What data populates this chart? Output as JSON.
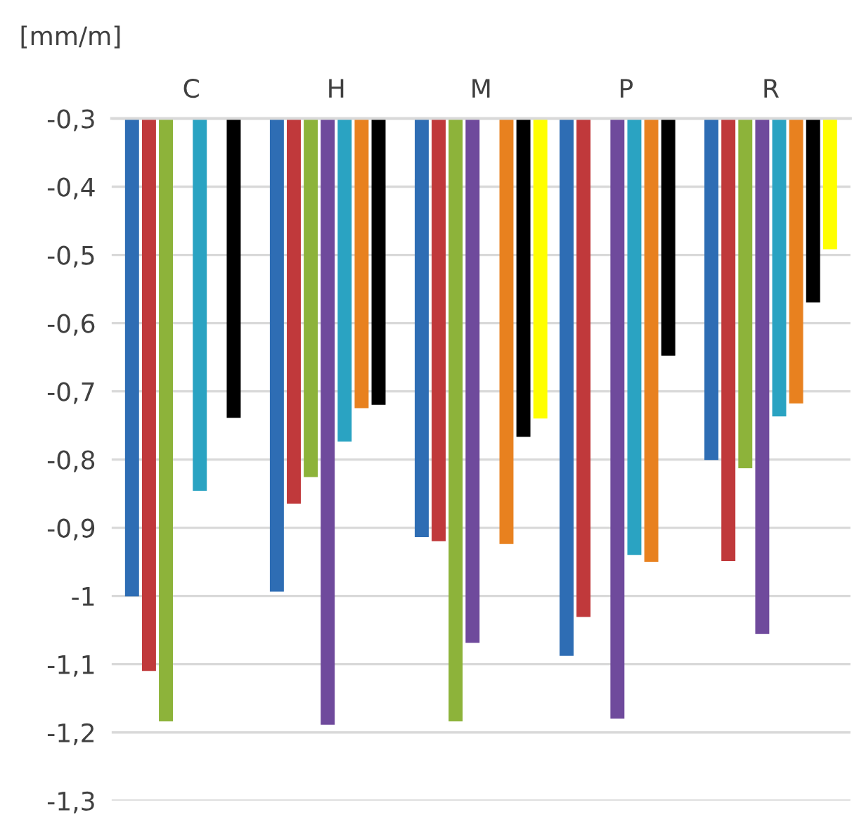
{
  "chart_data": {
    "type": "bar",
    "ylabel": "[mm/m]",
    "categories": [
      "C",
      "H",
      "M",
      "P",
      "R"
    ],
    "series": [
      {
        "color": "#2e6db4",
        "values": [
          -1.0,
          -0.993,
          -0.913,
          -1.087,
          -0.8
        ]
      },
      {
        "color": "#c0393b",
        "values": [
          -1.109,
          -0.864,
          -0.919,
          -1.03,
          -0.948
        ]
      },
      {
        "color": "#8db33a",
        "values": [
          -1.183,
          -0.825,
          -1.183,
          null,
          -0.812
        ]
      },
      {
        "color": "#6f4a9c",
        "values": [
          null,
          -1.188,
          -1.068,
          -1.179,
          -1.055
        ]
      },
      {
        "color": "#2aa3c2",
        "values": [
          -0.845,
          -0.773,
          null,
          -0.939,
          -0.736
        ]
      },
      {
        "color": "#e8811f",
        "values": [
          null,
          -0.724,
          -0.923,
          -0.949,
          -0.717
        ]
      },
      {
        "color": "#000000",
        "values": [
          -0.738,
          -0.719,
          -0.766,
          -0.647,
          -0.569
        ]
      },
      {
        "color": "#ffff00",
        "values": [
          null,
          null,
          -0.739,
          null,
          -0.491
        ]
      }
    ],
    "ylim": [
      -1.3,
      -0.3
    ],
    "yticks": [
      {
        "value": -1.3,
        "label": "-1,3"
      },
      {
        "value": -1.2,
        "label": "-1,2"
      },
      {
        "value": -1.1,
        "label": "-1,1"
      },
      -1,
      {
        "value": -0.9,
        "label": "-0,9"
      },
      {
        "value": -0.8,
        "label": "-0,8"
      },
      {
        "value": -0.7,
        "label": "-0,7"
      },
      {
        "value": -0.6,
        "label": "-0,6"
      },
      {
        "value": -0.5,
        "label": "-0,5"
      },
      {
        "value": -0.4,
        "label": "-0,4"
      },
      {
        "value": -0.3,
        "label": "-0,3"
      }
    ],
    "grid": "y"
  }
}
